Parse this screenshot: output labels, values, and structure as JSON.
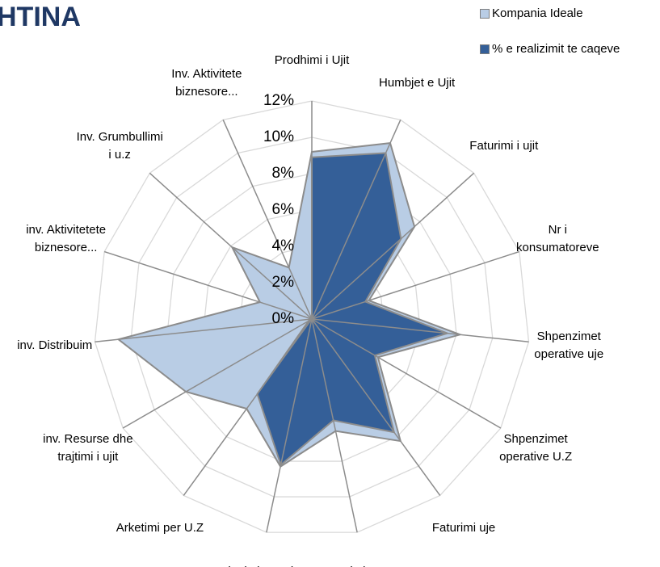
{
  "chart_data": {
    "type": "radar",
    "title": "HTINA",
    "categories": [
      "Prodhimi i Ujit",
      "Humbjet e Ujit",
      "Faturimi i ujit",
      "Nr i konsumatoreve",
      "Shpenzimet operative uje",
      "Shpenzimet operative U.Z",
      "Faturimi uje",
      "Faturimi per U.Z",
      "Arketimi per uje",
      "Arketimi per U.Z",
      "inv. Resurse dhe trajtimi i ujit",
      "inv. Distribuim",
      "inv. Aktivitetete biznesore...",
      "Inv. Grumbullimi i u.z",
      "Inv. Aktivitete biznesore..."
    ],
    "series": [
      {
        "name": "Kompania Ideale",
        "color": "#b9cde5",
        "values": [
          9.2,
          10.6,
          7.6,
          3.3,
          8.2,
          4.2,
          8.3,
          6.3,
          8.3,
          6.1,
          8.0,
          10.7,
          3.0,
          5.9,
          3.1
        ]
      },
      {
        "name": "% e realizimit te caqeve",
        "color": "#345f98",
        "values": [
          8.9,
          10.0,
          6.6,
          3.1,
          7.5,
          4.0,
          7.7,
          5.7,
          8.2,
          5.1,
          0.2,
          0,
          0,
          0,
          0
        ]
      }
    ],
    "ylim": [
      0,
      12
    ],
    "yticks": [
      {
        "value": 0,
        "label": "0%"
      },
      {
        "value": 2,
        "label": "2%"
      },
      {
        "value": 4,
        "label": "4%"
      },
      {
        "value": 6,
        "label": "6%"
      },
      {
        "value": 8,
        "label": "8%"
      },
      {
        "value": 10,
        "label": "10%"
      },
      {
        "value": 12,
        "label": "12%"
      }
    ],
    "grid": true,
    "legend": "top-right"
  }
}
